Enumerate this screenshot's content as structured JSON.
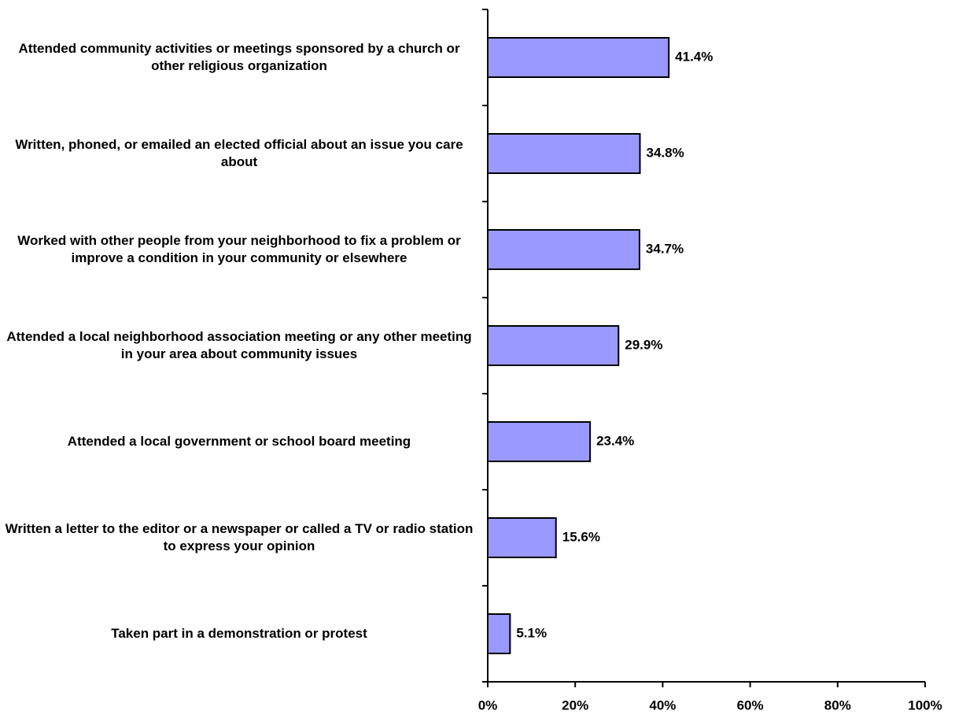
{
  "chart_data": {
    "type": "bar",
    "orientation": "horizontal",
    "categories": [
      "Attended community activities or meetings sponsored by a church or other religious organization",
      "Written, phoned, or emailed an elected official about an issue you care about",
      "Worked with other people from your neighborhood to fix a problem or improve a condition in your community or elsewhere",
      "Attended a local neighborhood association meeting or any other meeting in your area about community issues",
      "Attended a local government or school board meeting",
      "Written a letter to the editor or a newspaper or called a TV or radio station to express your opinion",
      "Taken part in a demonstration or protest"
    ],
    "values": [
      41.4,
      34.8,
      34.7,
      29.9,
      23.4,
      15.6,
      5.1
    ],
    "value_labels": [
      "41.4%",
      "34.8%",
      "34.7%",
      "29.9%",
      "23.4%",
      "15.6%",
      "5.1%"
    ],
    "color": "#9999ff",
    "xlim": [
      0,
      100
    ],
    "xticks": [
      {
        "value": 0,
        "label": "0%"
      },
      {
        "value": 20,
        "label": "20%"
      },
      {
        "value": 40,
        "label": "40%"
      },
      {
        "value": 60,
        "label": "60%"
      },
      {
        "value": 80,
        "label": "80%"
      },
      {
        "value": 100,
        "label": "100%"
      }
    ],
    "grid": false
  }
}
